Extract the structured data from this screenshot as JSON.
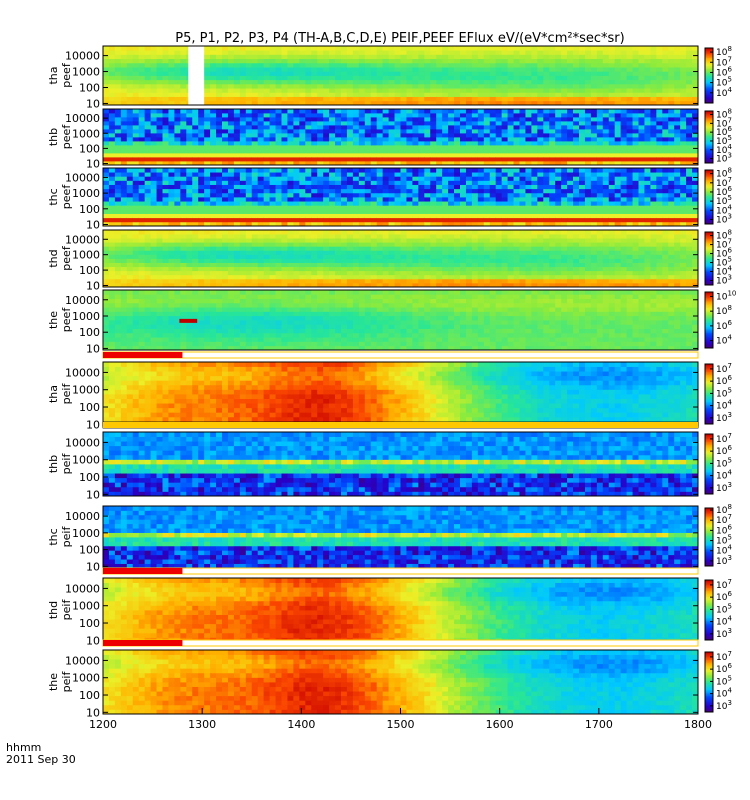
{
  "chart_data": {
    "type": "heatmap",
    "title": "P5, P1, P2, P3, P4 (TH-A,B,C,D,E) PEIF,PEEF EFlux eV/(eV*cm²*sec*sr)",
    "x_ticks": [
      1200,
      1300,
      1400,
      1500,
      1600,
      1700,
      1800
    ],
    "xlim": [
      1200,
      1800
    ],
    "x_label_left": "hhmm",
    "date_label": "2011 Sep 30",
    "y_scale": "log",
    "ylim": [
      8,
      40000
    ],
    "panels": [
      {
        "label": [
          "tha",
          "peef"
        ],
        "pattern": "e_green",
        "y_ticks": [
          "10000",
          "1000",
          "100",
          "10"
        ],
        "cbar_ticks": [
          {
            "mant": "10",
            "exp": "8"
          },
          {
            "mant": "10",
            "exp": "7"
          },
          {
            "mant": "10",
            "exp": "6"
          },
          {
            "mant": "10",
            "exp": "5"
          },
          {
            "mant": "10",
            "exp": "4"
          }
        ],
        "cbar_range": [
          3,
          8.4
        ],
        "gaps": [
          [
            1286,
            1302
          ]
        ]
      },
      {
        "label": [
          "thb",
          "peef"
        ],
        "pattern": "bands_e",
        "y_ticks": [
          "10000",
          "1000",
          "100",
          "10"
        ],
        "cbar_ticks": [
          {
            "mant": "10",
            "exp": "8"
          },
          {
            "mant": "10",
            "exp": "7"
          },
          {
            "mant": "10",
            "exp": "6"
          },
          {
            "mant": "10",
            "exp": "5"
          },
          {
            "mant": "10",
            "exp": "4"
          },
          {
            "mant": "10",
            "exp": "3"
          }
        ],
        "cbar_range": [
          2.5,
          8.4
        ]
      },
      {
        "label": [
          "thc",
          "peef"
        ],
        "pattern": "bands_e",
        "y_ticks": [
          "10000",
          "1000",
          "100",
          "10"
        ],
        "cbar_ticks": [
          {
            "mant": "10",
            "exp": "8"
          },
          {
            "mant": "10",
            "exp": "7"
          },
          {
            "mant": "10",
            "exp": "6"
          },
          {
            "mant": "10",
            "exp": "5"
          },
          {
            "mant": "10",
            "exp": "4"
          },
          {
            "mant": "10",
            "exp": "3"
          }
        ],
        "cbar_range": [
          2.5,
          8.4
        ]
      },
      {
        "label": [
          "thd",
          "peef"
        ],
        "pattern": "e_green",
        "y_ticks": [
          "10000",
          "1000",
          "100",
          "10"
        ],
        "cbar_ticks": [
          {
            "mant": "10",
            "exp": "8"
          },
          {
            "mant": "10",
            "exp": "7"
          },
          {
            "mant": "10",
            "exp": "6"
          },
          {
            "mant": "10",
            "exp": "5"
          },
          {
            "mant": "10",
            "exp": "4"
          },
          {
            "mant": "10",
            "exp": "3"
          }
        ],
        "cbar_range": [
          2.5,
          8.4
        ]
      },
      {
        "label": [
          "the",
          "peef"
        ],
        "pattern": "e_cyan",
        "y_ticks": [
          "10000",
          "1000",
          "100",
          "10"
        ],
        "cbar_ticks": [
          {
            "mant": "10",
            "exp": "10"
          },
          {
            "mant": "10",
            "exp": "8"
          },
          {
            "mant": "10",
            "exp": "6"
          },
          {
            "mant": "10",
            "exp": "4"
          }
        ],
        "cbar_range": [
          3,
          10.6
        ],
        "marker": {
          "x0": 1277,
          "x1": 1295,
          "energy": 500
        }
      },
      {
        "label": [
          "tha",
          "peif"
        ],
        "pattern": "i_red",
        "y_ticks": [
          "10000",
          "1000",
          "100",
          "10"
        ],
        "cbar_ticks": [
          {
            "mant": "10",
            "exp": "7"
          },
          {
            "mant": "10",
            "exp": "6"
          },
          {
            "mant": "10",
            "exp": "5"
          },
          {
            "mant": "10",
            "exp": "4"
          },
          {
            "mant": "10",
            "exp": "3"
          }
        ],
        "cbar_range": [
          2.5,
          7.4
        ],
        "flag": {
          "x_end": 1280
        }
      },
      {
        "label": [
          "thb",
          "peif"
        ],
        "pattern": "i_dark",
        "y_ticks": [
          "10000",
          "1000",
          "100",
          "10"
        ],
        "cbar_ticks": [
          {
            "mant": "10",
            "exp": "7"
          },
          {
            "mant": "10",
            "exp": "6"
          },
          {
            "mant": "10",
            "exp": "5"
          },
          {
            "mant": "10",
            "exp": "4"
          },
          {
            "mant": "10",
            "exp": "3"
          }
        ],
        "cbar_range": [
          2.5,
          7.4
        ],
        "flag": {
          "x_end": 1800
        }
      },
      {
        "label": [
          "thc",
          "peif"
        ],
        "pattern": "i_dark",
        "y_ticks": [
          "10000",
          "1000",
          "100",
          "10"
        ],
        "cbar_ticks": [
          {
            "mant": "10",
            "exp": "8"
          },
          {
            "mant": "10",
            "exp": "7"
          },
          {
            "mant": "10",
            "exp": "6"
          },
          {
            "mant": "10",
            "exp": "5"
          },
          {
            "mant": "10",
            "exp": "4"
          },
          {
            "mant": "10",
            "exp": "3"
          }
        ],
        "cbar_range": [
          2.5,
          8.2
        ]
      },
      {
        "label": [
          "thd",
          "peif"
        ],
        "pattern": "i_red",
        "y_ticks": [
          "10000",
          "1000",
          "100",
          "10"
        ],
        "cbar_ticks": [
          {
            "mant": "10",
            "exp": "7"
          },
          {
            "mant": "10",
            "exp": "6"
          },
          {
            "mant": "10",
            "exp": "5"
          },
          {
            "mant": "10",
            "exp": "4"
          },
          {
            "mant": "10",
            "exp": "3"
          }
        ],
        "cbar_range": [
          2.5,
          7.4
        ],
        "flag": {
          "x_end": 1280
        }
      },
      {
        "label": [
          "the",
          "peif"
        ],
        "pattern": "i_red",
        "y_ticks": [
          "10000",
          "1000",
          "100",
          "10"
        ],
        "cbar_ticks": [
          {
            "mant": "10",
            "exp": "7"
          },
          {
            "mant": "10",
            "exp": "6"
          },
          {
            "mant": "10",
            "exp": "5"
          },
          {
            "mant": "10",
            "exp": "4"
          },
          {
            "mant": "10",
            "exp": "3"
          }
        ],
        "cbar_range": [
          2.5,
          7.4
        ],
        "flag": {
          "x_end": 1280
        }
      }
    ]
  }
}
